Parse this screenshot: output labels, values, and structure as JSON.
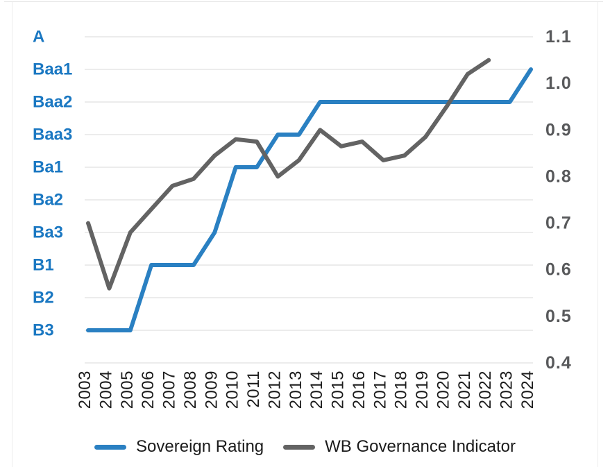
{
  "chart_data": {
    "type": "line",
    "title": "",
    "x": [
      "2003",
      "2004",
      "2005",
      "2006",
      "2007",
      "2008",
      "2009",
      "2010",
      "2011",
      "2012",
      "2013",
      "2014",
      "2015",
      "2016",
      "2017",
      "2018",
      "2019",
      "2020",
      "2021",
      "2022",
      "2023",
      "2024"
    ],
    "left_axis": {
      "type": "category",
      "categories_top_to_bottom": [
        "A",
        "Baa1",
        "Baa2",
        "Baa3",
        "Ba1",
        "Ba2",
        "Ba3",
        "B1",
        "B2",
        "B3"
      ],
      "label_color": "#1b78c2"
    },
    "right_axis": {
      "type": "numeric",
      "min": 0.4,
      "max": 1.1,
      "tick_labels": [
        "1.1",
        "1.0",
        "0.9",
        "0.8",
        "0.7",
        "0.6",
        "0.5",
        "0.4"
      ],
      "ticks": [
        1.1,
        1.0,
        0.9,
        0.8,
        0.7,
        0.6,
        0.5,
        0.4
      ],
      "label_color": "#58595b"
    },
    "grid": "horizontal lines at each left-axis category, on",
    "legend_position": "bottom",
    "series": [
      {
        "name": "Sovereign Rating",
        "axis": "left",
        "color": "#2a80c2",
        "values": [
          "B3",
          "B3",
          "B3",
          "B1",
          "B1",
          "B1",
          "Ba3",
          "Ba1",
          "Ba1",
          "Baa3",
          "Baa3",
          "Baa2",
          "Baa2",
          "Baa2",
          "Baa2",
          "Baa2",
          "Baa2",
          "Baa2",
          "Baa2",
          "Baa2",
          "Baa2",
          "Baa1"
        ]
      },
      {
        "name": "WB Governance Indicator",
        "axis": "right",
        "color": "#636363",
        "values": [
          0.7,
          0.56,
          0.68,
          0.73,
          0.78,
          0.795,
          0.845,
          0.88,
          0.875,
          0.8,
          0.835,
          0.9,
          0.865,
          0.875,
          0.835,
          0.845,
          0.885,
          0.95,
          1.02,
          1.05
        ]
      }
    ]
  },
  "legend": {
    "items": [
      {
        "label": "Sovereign Rating",
        "color": "#2a80c2"
      },
      {
        "label": "WB Governance Indicator",
        "color": "#636363"
      }
    ]
  }
}
